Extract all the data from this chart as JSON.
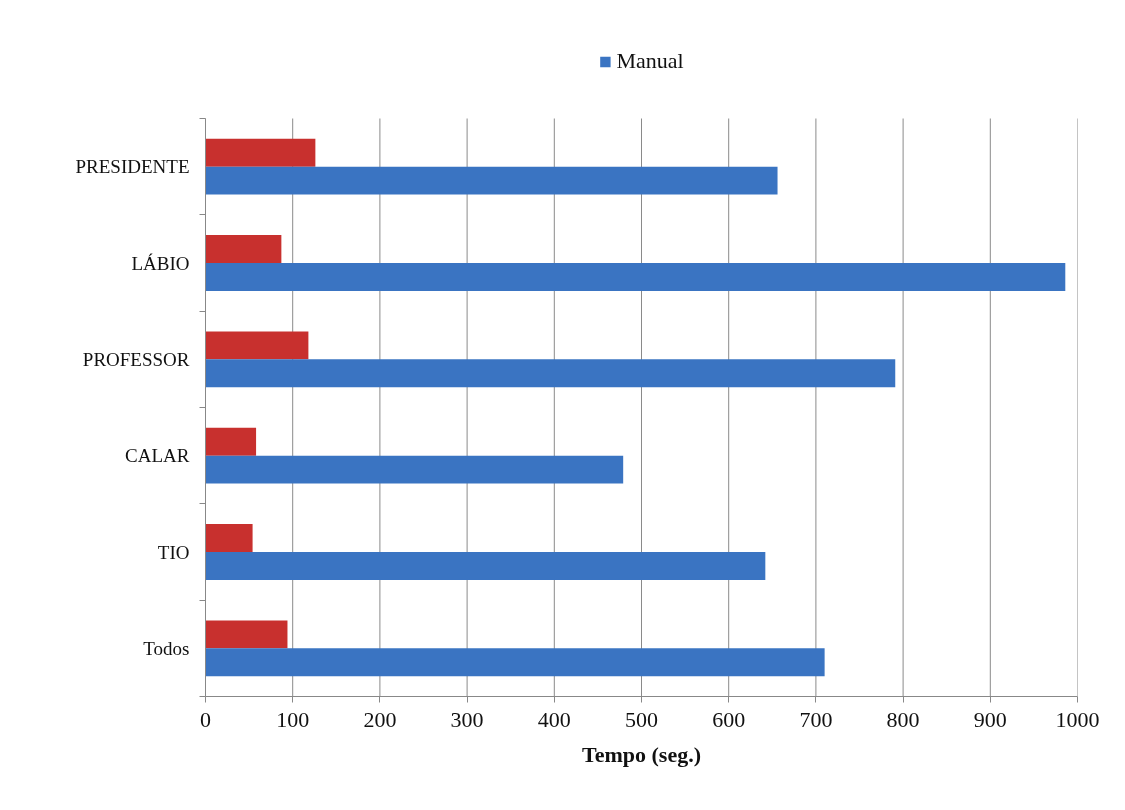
{
  "chart_data": {
    "type": "bar",
    "orientation": "horizontal",
    "categories": [
      "PRESIDENTE",
      "LÁBIO",
      "PROFESSOR",
      "CALAR",
      "TIO",
      "Todos"
    ],
    "series": [
      {
        "color": "#c8302e",
        "values": [
          126,
          87,
          118,
          58,
          54,
          94
        ]
      },
      {
        "name": "Manual",
        "color": "#3a74c2",
        "values": [
          656,
          986,
          791,
          479,
          642,
          710
        ]
      }
    ],
    "xlabel": "Tempo (seg.)",
    "xlim": [
      0,
      1000
    ],
    "xticks": [
      0,
      100,
      200,
      300,
      400,
      500,
      600,
      700,
      800,
      900,
      1000
    ],
    "grid": "x",
    "legend": "top"
  }
}
